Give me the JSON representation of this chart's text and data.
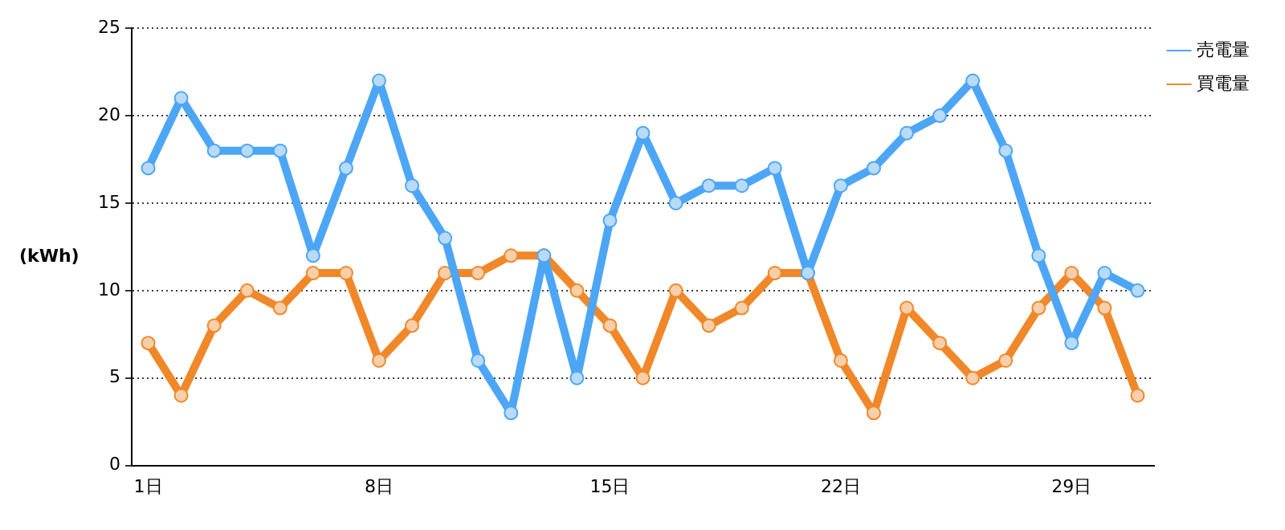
{
  "chart_data": {
    "type": "line",
    "ylabel": "(kWh)",
    "categories": [
      "1日",
      null,
      null,
      null,
      null,
      null,
      null,
      "8日",
      null,
      null,
      null,
      null,
      null,
      null,
      "15日",
      null,
      null,
      null,
      null,
      null,
      null,
      "22日",
      null,
      null,
      null,
      null,
      null,
      null,
      "29日",
      null,
      null
    ],
    "series": [
      {
        "name": "売電量",
        "color": "#4da6f5",
        "values": [
          17,
          21,
          18,
          18,
          18,
          12,
          17,
          22,
          16,
          13,
          6,
          3,
          12,
          5,
          14,
          19,
          15,
          16,
          16,
          17,
          11,
          16,
          17,
          19,
          20,
          22,
          18,
          12,
          7,
          11,
          10
        ]
      },
      {
        "name": "買電量",
        "color": "#f0882a",
        "values": [
          7,
          4,
          8,
          10,
          9,
          11,
          11,
          6,
          8,
          11,
          11,
          12,
          12,
          10,
          8,
          5,
          10,
          8,
          9,
          11,
          11,
          6,
          3,
          9,
          7,
          5,
          6,
          9,
          11,
          9,
          4
        ]
      }
    ],
    "ylim": [
      0,
      25
    ],
    "yticks": [
      0,
      5,
      10,
      15,
      20,
      25
    ],
    "grid": "y",
    "legend": "top right",
    "marker": "circle",
    "line_style": "solid"
  }
}
